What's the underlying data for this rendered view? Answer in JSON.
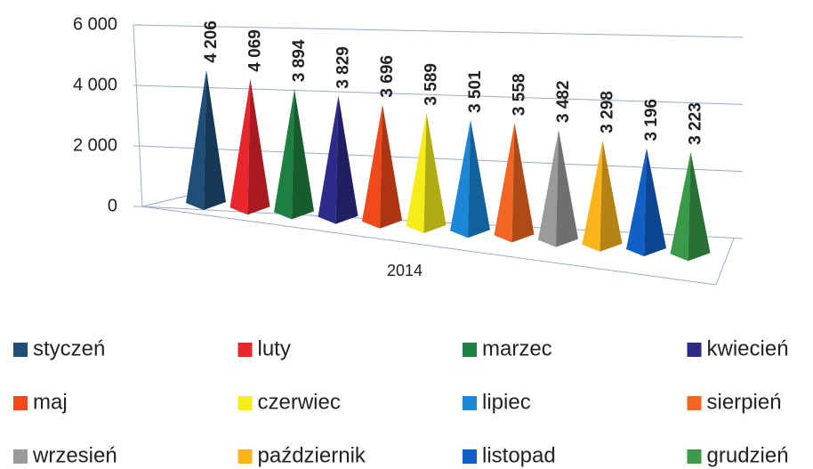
{
  "chart_data": {
    "type": "pyramid",
    "categories": [
      "2014"
    ],
    "series": [
      {
        "name": "styczeń",
        "color": "#1f4e79",
        "values": [
          4206
        ],
        "value_labels": [
          "4 206"
        ]
      },
      {
        "name": "luty",
        "color": "#e8262c",
        "values": [
          4069
        ],
        "value_labels": [
          "4 069"
        ]
      },
      {
        "name": "marzec",
        "color": "#1e8040",
        "values": [
          3894
        ],
        "value_labels": [
          "3 894"
        ]
      },
      {
        "name": "kwiecień",
        "color": "#2e2a8a",
        "values": [
          3829
        ],
        "value_labels": [
          "3 829"
        ]
      },
      {
        "name": "maj",
        "color": "#f04a1c",
        "values": [
          3696
        ],
        "value_labels": [
          "3 696"
        ]
      },
      {
        "name": "czerwiec",
        "color": "#f5ec1a",
        "values": [
          3589
        ],
        "value_labels": [
          "3 589"
        ]
      },
      {
        "name": "lipiec",
        "color": "#1b87d6",
        "values": [
          3501
        ],
        "value_labels": [
          "3 501"
        ]
      },
      {
        "name": "sierpień",
        "color": "#f26522",
        "values": [
          3558
        ],
        "value_labels": [
          "3 558"
        ]
      },
      {
        "name": "wrzesień",
        "color": "#9a9a9a",
        "values": [
          3482
        ],
        "value_labels": [
          "3 482"
        ]
      },
      {
        "name": "październik",
        "color": "#fbb41c",
        "values": [
          3298
        ],
        "value_labels": [
          "3 298"
        ]
      },
      {
        "name": "listopad",
        "color": "#1060c8",
        "values": [
          3196
        ],
        "value_labels": [
          "3 196"
        ]
      },
      {
        "name": "grudzień",
        "color": "#3a9a4a",
        "values": [
          3223
        ],
        "value_labels": [
          "3 223"
        ]
      }
    ],
    "ylim": [
      0,
      6000
    ],
    "yticks": [
      0,
      {
        "value": 2000,
        "label": "2 000"
      },
      {
        "value": 4000,
        "label": "4 000"
      },
      {
        "value": 6000,
        "label": "6 000"
      }
    ],
    "grid": true,
    "legend": "bottom"
  }
}
